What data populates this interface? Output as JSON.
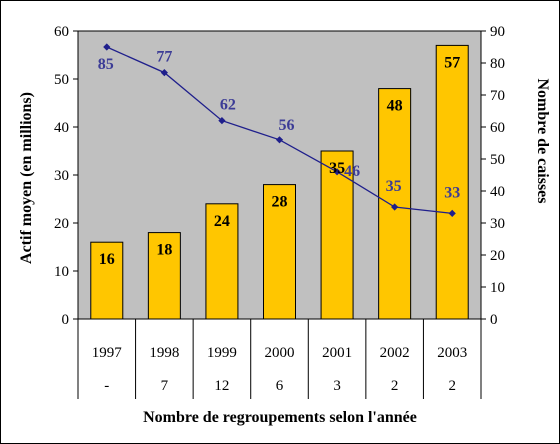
{
  "chart_data": {
    "type": "bar+line",
    "categories": [
      "1997",
      "1998",
      "1999",
      "2000",
      "2001",
      "2002",
      "2003"
    ],
    "series": [
      {
        "name": "Actif moyen (en millions)",
        "type": "bar",
        "axis": "left",
        "values": [
          16,
          18,
          24,
          28,
          35,
          48,
          57
        ],
        "color": "#ffc600"
      },
      {
        "name": "Nombre de caisses",
        "type": "line",
        "axis": "right",
        "values": [
          85,
          77,
          62,
          56,
          46,
          35,
          33
        ],
        "color": "#1f1f8c"
      }
    ],
    "left_axis": {
      "label": "Actif moyen (en millions)",
      "ylim": [
        0,
        60
      ],
      "ticks": [
        0,
        10,
        20,
        30,
        40,
        50,
        60
      ]
    },
    "right_axis": {
      "label": "Nombre de caisses",
      "ylim": [
        0,
        90
      ],
      "ticks": [
        0,
        10,
        20,
        30,
        40,
        50,
        60,
        70,
        80,
        90
      ]
    },
    "regroupements": [
      "-",
      "7",
      "12",
      "6",
      "3",
      "2",
      "2"
    ],
    "xlabel": "Nombre de regroupements selon l'année",
    "plot_background": "#c0c0c0",
    "grid": false
  }
}
